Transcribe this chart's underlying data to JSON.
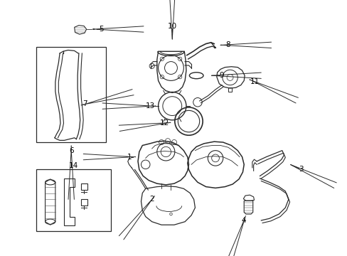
{
  "bg_color": "#ffffff",
  "line_color": "#2a2a2a",
  "label_color": "#000000",
  "figsize": [
    4.89,
    3.6
  ],
  "dpi": 100,
  "label_fs": 7.5,
  "lw_main": 0.9,
  "lw_thin": 0.6
}
